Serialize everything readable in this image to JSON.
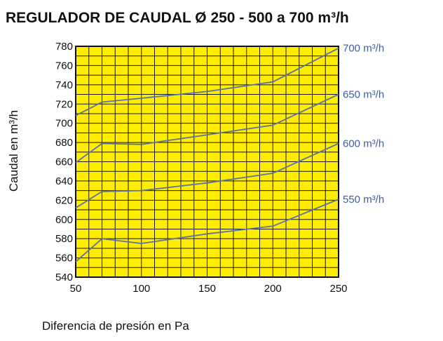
{
  "chart_data": {
    "type": "line",
    "title": "REGULADOR DE CAUDAL Ø 250 - 500 a 700 m³/h",
    "xlabel": "Diferencia de presión en Pa",
    "ylabel": "Caudal en m³/h",
    "xlim": [
      50,
      250
    ],
    "ylim": [
      540,
      780
    ],
    "x_ticks": [
      "50",
      "100",
      "150",
      "200",
      "250"
    ],
    "y_ticks": [
      "540",
      "560",
      "580",
      "600",
      "620",
      "640",
      "660",
      "680",
      "700",
      "720",
      "740",
      "760",
      "780"
    ],
    "grid": true,
    "series_labels_placement": "right",
    "colors": {
      "plot_background": "#ffed00",
      "grid": "#1a1a1a",
      "line": "#5a74a8",
      "series_label": "#3f5da0"
    },
    "series": [
      {
        "name": "700 m³/h",
        "points": [
          [
            50,
            708
          ],
          [
            70,
            722
          ],
          [
            100,
            726
          ],
          [
            150,
            733
          ],
          [
            200,
            743
          ],
          [
            250,
            778
          ]
        ]
      },
      {
        "name": "650 m³/h",
        "points": [
          [
            50,
            659
          ],
          [
            70,
            679
          ],
          [
            100,
            678
          ],
          [
            150,
            688
          ],
          [
            200,
            698
          ],
          [
            250,
            730
          ]
        ]
      },
      {
        "name": "600 m³/h",
        "points": [
          [
            50,
            612
          ],
          [
            70,
            629
          ],
          [
            100,
            630
          ],
          [
            150,
            638
          ],
          [
            200,
            648
          ],
          [
            250,
            679
          ]
        ]
      },
      {
        "name": "550 m³/h",
        "points": [
          [
            50,
            556
          ],
          [
            70,
            580
          ],
          [
            100,
            575
          ],
          [
            150,
            585
          ],
          [
            200,
            593
          ],
          [
            250,
            621
          ]
        ]
      }
    ]
  }
}
